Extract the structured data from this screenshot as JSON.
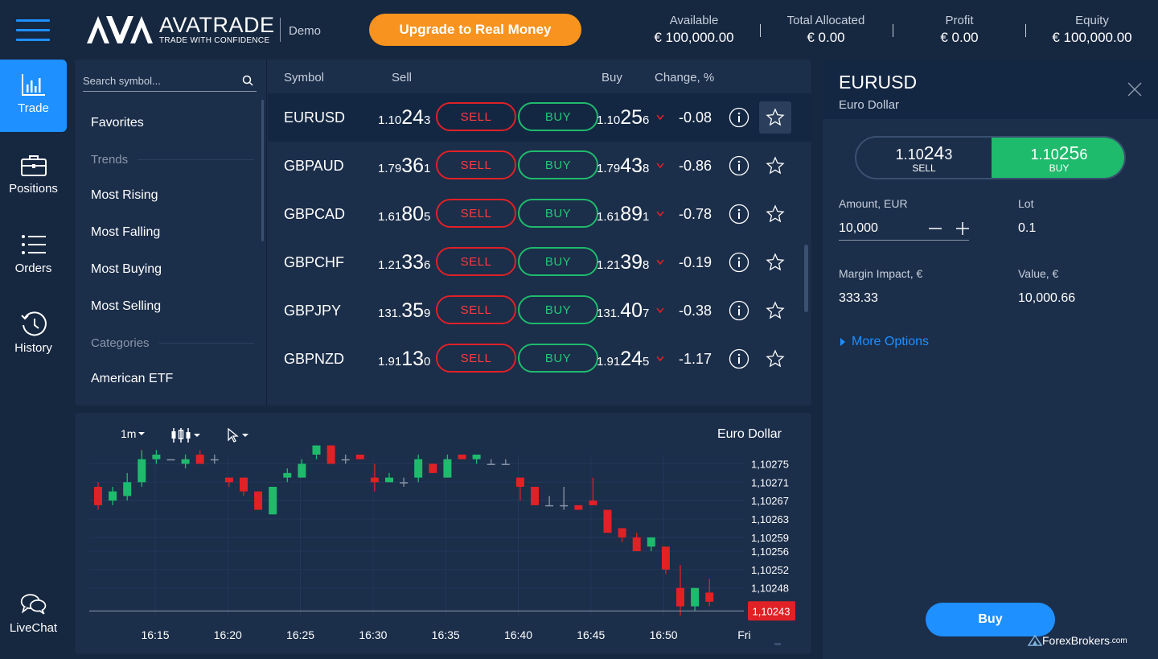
{
  "header": {
    "brand_name": "AVATRADE",
    "brand_tagline": "TRADE WITH CONFIDENCE",
    "account_mode": "Demo",
    "upgrade_label": "Upgrade to Real Money",
    "stats": [
      {
        "label": "Available",
        "value": "€ 100,000.00"
      },
      {
        "label": "Total Allocated",
        "value": "€ 0.00"
      },
      {
        "label": "Profit",
        "value": "€ 0.00"
      },
      {
        "label": "Equity",
        "value": "€ 100,000.00"
      }
    ]
  },
  "nav": [
    {
      "label": "Trade",
      "icon": "bar-chart-icon",
      "active": true
    },
    {
      "label": "Positions",
      "icon": "briefcase-icon"
    },
    {
      "label": "Orders",
      "icon": "list-icon"
    },
    {
      "label": "History",
      "icon": "history-icon"
    },
    {
      "label": "LiveChat",
      "icon": "chat-icon"
    }
  ],
  "categories": {
    "search_placeholder": "Search symbol...",
    "favorites": "Favorites",
    "trends_heading": "Trends",
    "trends": [
      "Most Rising",
      "Most Falling",
      "Most Buying",
      "Most Selling"
    ],
    "categories_heading": "Categories",
    "categories": [
      "American ETF"
    ]
  },
  "table": {
    "headers": {
      "symbol": "Symbol",
      "sell": "Sell",
      "buy": "Buy",
      "change": "Change, %"
    },
    "sell_label": "SELL",
    "buy_label": "BUY",
    "rows": [
      {
        "symbol": "EURUSD",
        "sell_a": "1.10",
        "sell_b": "24",
        "sell_c": "3",
        "buy_a": "1.10",
        "buy_b": "25",
        "buy_c": "6",
        "change": "-0.08"
      },
      {
        "symbol": "GBPAUD",
        "sell_a": "1.79",
        "sell_b": "36",
        "sell_c": "1",
        "buy_a": "1.79",
        "buy_b": "43",
        "buy_c": "8",
        "change": "-0.86"
      },
      {
        "symbol": "GBPCAD",
        "sell_a": "1.61",
        "sell_b": "80",
        "sell_c": "5",
        "buy_a": "1.61",
        "buy_b": "89",
        "buy_c": "1",
        "change": "-0.78"
      },
      {
        "symbol": "GBPCHF",
        "sell_a": "1.21",
        "sell_b": "33",
        "sell_c": "6",
        "buy_a": "1.21",
        "buy_b": "39",
        "buy_c": "8",
        "change": "-0.19"
      },
      {
        "symbol": "GBPJPY",
        "sell_a": "131.",
        "sell_b": "35",
        "sell_c": "9",
        "buy_a": "131.",
        "buy_b": "40",
        "buy_c": "7",
        "change": "-0.38"
      },
      {
        "symbol": "GBPNZD",
        "sell_a": "1.91",
        "sell_b": "13",
        "sell_c": "0",
        "buy_a": "1.91",
        "buy_b": "24",
        "buy_c": "5",
        "change": "-1.17"
      }
    ]
  },
  "chart": {
    "timeframe": "1m",
    "title": "Euro Dollar",
    "current_price": "1,10243"
  },
  "chart_data": {
    "type": "candlestick",
    "x_ticks": [
      "16:15",
      "16:20",
      "16:25",
      "16:30",
      "16:35",
      "16:40",
      "16:45",
      "16:50",
      "Fri"
    ],
    "y_ticks": [
      "1,10275",
      "1,10271",
      "1,10267",
      "1,10263",
      "1,10259",
      "1,10256",
      "1,10252",
      "1,10248"
    ],
    "ylim": [
      1.10242,
      1.10277
    ],
    "last_price": 1.10243,
    "colors": {
      "up": "#1fbb6c",
      "down": "#e02126",
      "flat": "#8a96a8"
    },
    "candles": [
      {
        "o": 1.1027,
        "c": 1.10266,
        "h": 1.10271,
        "l": 1.10265
      },
      {
        "o": 1.10267,
        "c": 1.10269,
        "h": 1.1027,
        "l": 1.10266
      },
      {
        "o": 1.10268,
        "c": 1.10271,
        "h": 1.10273,
        "l": 1.10267
      },
      {
        "o": 1.10271,
        "c": 1.10276,
        "h": 1.10278,
        "l": 1.1027
      },
      {
        "o": 1.10276,
        "c": 1.10277,
        "h": 1.10278,
        "l": 1.10275
      },
      {
        "o": 1.10276,
        "c": 1.10276,
        "h": 1.10276,
        "l": 1.10276
      },
      {
        "o": 1.10275,
        "c": 1.10276,
        "h": 1.10277,
        "l": 1.10274
      },
      {
        "o": 1.10277,
        "c": 1.10275,
        "h": 1.10278,
        "l": 1.10275
      },
      {
        "o": 1.10276,
        "c": 1.10276,
        "h": 1.10277,
        "l": 1.10275
      },
      {
        "o": 1.10272,
        "c": 1.10271,
        "h": 1.10272,
        "l": 1.1027
      },
      {
        "o": 1.10272,
        "c": 1.10269,
        "h": 1.10272,
        "l": 1.10268
      },
      {
        "o": 1.10269,
        "c": 1.10265,
        "h": 1.10269,
        "l": 1.10265
      },
      {
        "o": 1.10264,
        "c": 1.1027,
        "h": 1.1027,
        "l": 1.10264
      },
      {
        "o": 1.10272,
        "c": 1.10273,
        "h": 1.10274,
        "l": 1.10271
      },
      {
        "o": 1.10272,
        "c": 1.10275,
        "h": 1.10276,
        "l": 1.10272
      },
      {
        "o": 1.10277,
        "c": 1.10279,
        "h": 1.10279,
        "l": 1.10276
      },
      {
        "o": 1.10279,
        "c": 1.10275,
        "h": 1.10279,
        "l": 1.10275
      },
      {
        "o": 1.10276,
        "c": 1.10276,
        "h": 1.10277,
        "l": 1.10275
      },
      {
        "o": 1.10277,
        "c": 1.10276,
        "h": 1.10277,
        "l": 1.10276
      },
      {
        "o": 1.10272,
        "c": 1.10271,
        "h": 1.10275,
        "l": 1.10269
      },
      {
        "o": 1.10271,
        "c": 1.10272,
        "h": 1.10273,
        "l": 1.10271
      },
      {
        "o": 1.10271,
        "c": 1.10271,
        "h": 1.10272,
        "l": 1.1027
      },
      {
        "o": 1.10272,
        "c": 1.10276,
        "h": 1.10277,
        "l": 1.10271
      },
      {
        "o": 1.10275,
        "c": 1.10273,
        "h": 1.10275,
        "l": 1.10273
      },
      {
        "o": 1.10272,
        "c": 1.10276,
        "h": 1.10277,
        "l": 1.10272
      },
      {
        "o": 1.10277,
        "c": 1.10276,
        "h": 1.10277,
        "l": 1.10276
      },
      {
        "o": 1.10276,
        "c": 1.10277,
        "h": 1.10277,
        "l": 1.10275
      },
      {
        "o": 1.10275,
        "c": 1.10275,
        "h": 1.10276,
        "l": 1.10275
      },
      {
        "o": 1.10275,
        "c": 1.10275,
        "h": 1.10276,
        "l": 1.10275
      },
      {
        "o": 1.10272,
        "c": 1.1027,
        "h": 1.10272,
        "l": 1.10267
      },
      {
        "o": 1.1027,
        "c": 1.10266,
        "h": 1.1027,
        "l": 1.10266
      },
      {
        "o": 1.10266,
        "c": 1.10266,
        "h": 1.10268,
        "l": 1.10266
      },
      {
        "o": 1.10266,
        "c": 1.10266,
        "h": 1.1027,
        "l": 1.10265
      },
      {
        "o": 1.10266,
        "c": 1.10265,
        "h": 1.10266,
        "l": 1.10265
      },
      {
        "o": 1.10267,
        "c": 1.10266,
        "h": 1.10272,
        "l": 1.10266
      },
      {
        "o": 1.10265,
        "c": 1.1026,
        "h": 1.10265,
        "l": 1.1026
      },
      {
        "o": 1.10261,
        "c": 1.10259,
        "h": 1.10261,
        "l": 1.10258
      },
      {
        "o": 1.10259,
        "c": 1.10256,
        "h": 1.1026,
        "l": 1.10256
      },
      {
        "o": 1.10257,
        "c": 1.10259,
        "h": 1.10259,
        "l": 1.10256
      },
      {
        "o": 1.10257,
        "c": 1.10252,
        "h": 1.10257,
        "l": 1.10251
      },
      {
        "o": 1.10248,
        "c": 1.10244,
        "h": 1.10253,
        "l": 1.10242
      },
      {
        "o": 1.10244,
        "c": 1.10248,
        "h": 1.10248,
        "l": 1.10243
      },
      {
        "o": 1.10247,
        "c": 1.10245,
        "h": 1.1025,
        "l": 1.10244
      }
    ]
  },
  "order": {
    "symbol": "EURUSD",
    "name": "Euro Dollar",
    "sell_a": "1.10",
    "sell_b": "24",
    "sell_c": "3",
    "sell_label": "SELL",
    "buy_a": "1.10",
    "buy_b": "25",
    "buy_c": "6",
    "buy_label": "BUY",
    "amount_label": "Amount, EUR",
    "amount_value": "10,000",
    "lot_label": "Lot",
    "lot_value": "0.1",
    "margin_label": "Margin Impact, €",
    "margin_value": "333.33",
    "value_label": "Value, €",
    "value_value": "10,000.66",
    "more_options": "More Options",
    "buy_button": "Buy"
  },
  "watermark": {
    "name": "ForexBrokers",
    "suffix": ".com"
  }
}
